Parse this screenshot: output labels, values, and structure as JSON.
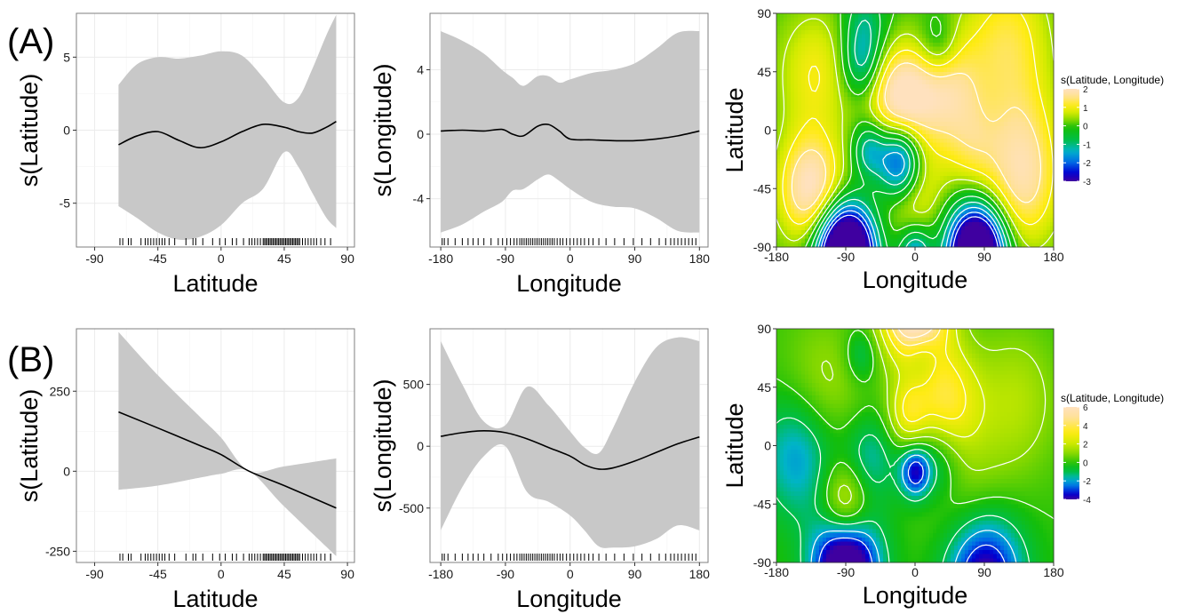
{
  "figure": {
    "row_labels": [
      "(A)",
      "(B)"
    ]
  },
  "chart_data": [
    {
      "id": "A1",
      "row": "A",
      "type": "line",
      "title": "",
      "xlabel": "Latitude",
      "ylabel": "s(Latitude)",
      "xlim": [
        -103,
        95
      ],
      "ylim": [
        -8,
        8
      ],
      "xticks": [
        -90,
        -45,
        0,
        45,
        90
      ],
      "yticks": [
        -5,
        0,
        5
      ],
      "grid": true,
      "series": [
        {
          "x": [
            -73,
            -60,
            -45,
            -30,
            -15,
            0,
            15,
            30,
            45,
            55,
            65,
            75,
            82
          ],
          "y": [
            -1.0,
            -0.4,
            -0.1,
            -0.7,
            -1.2,
            -0.8,
            -0.1,
            0.4,
            0.2,
            -0.1,
            -0.2,
            0.2,
            0.6
          ],
          "upper": [
            3.1,
            4.5,
            5.0,
            4.9,
            5.1,
            5.4,
            5.1,
            3.6,
            1.9,
            2.2,
            4.2,
            6.5,
            7.9
          ],
          "lower": [
            -5.2,
            -6.0,
            -7.0,
            -7.5,
            -7.3,
            -6.5,
            -5.0,
            -4.0,
            -1.5,
            -2.5,
            -4.3,
            -6.0,
            -6.7
          ]
        }
      ],
      "rug": [
        -72,
        -70,
        -66,
        -64,
        -57,
        -54,
        -52,
        -50,
        -48,
        -46,
        -44,
        -42,
        -40,
        -37,
        -33,
        -25,
        -20,
        -18,
        -13,
        -6,
        -1,
        3,
        8,
        11,
        16,
        20,
        22,
        24,
        26,
        28,
        30,
        31,
        32,
        33,
        34,
        35,
        36,
        37,
        38,
        39,
        40,
        41,
        42,
        43,
        44,
        45,
        46,
        47,
        48,
        49,
        50,
        51,
        52,
        53,
        54,
        55,
        56,
        58,
        60,
        62,
        64,
        66,
        68,
        71,
        74,
        78
      ]
    },
    {
      "id": "A2",
      "row": "A",
      "type": "line",
      "title": "",
      "xlabel": "Longitude",
      "ylabel": "s(Longitude)",
      "xlim": [
        -195,
        192
      ],
      "ylim": [
        -7,
        7.5
      ],
      "xticks": [
        -180,
        -90,
        0,
        90,
        180
      ],
      "yticks": [
        -4,
        0,
        4
      ],
      "grid": true,
      "series": [
        {
          "x": [
            -180,
            -150,
            -120,
            -95,
            -80,
            -65,
            -45,
            -30,
            -15,
            0,
            30,
            60,
            90,
            120,
            150,
            180
          ],
          "y": [
            0.2,
            0.25,
            0.2,
            0.3,
            0.0,
            -0.1,
            0.5,
            0.6,
            0.2,
            -0.3,
            -0.35,
            -0.4,
            -0.4,
            -0.3,
            -0.1,
            0.2
          ],
          "upper": [
            6.4,
            5.8,
            5.0,
            4.0,
            3.5,
            3.0,
            3.6,
            3.6,
            3.2,
            3.4,
            3.8,
            4.0,
            4.4,
            5.3,
            6.3,
            6.4
          ],
          "lower": [
            -6.1,
            -5.6,
            -4.8,
            -4.2,
            -3.5,
            -3.4,
            -2.8,
            -2.5,
            -2.9,
            -3.4,
            -4.2,
            -4.5,
            -4.6,
            -5.2,
            -6.0,
            -6.1
          ]
        }
      ],
      "rug": [
        -178,
        -175,
        -170,
        -160,
        -150,
        -142,
        -135,
        -128,
        -120,
        -110,
        -100,
        -94,
        -88,
        -83,
        -78,
        -74,
        -70,
        -67,
        -64,
        -61,
        -58,
        -55,
        -52,
        -49,
        -46,
        -43,
        -40,
        -37,
        -34,
        -31,
        -28,
        -25,
        -22,
        -18,
        -14,
        -10,
        -5,
        0,
        5,
        10,
        15,
        20,
        26,
        32,
        40,
        50,
        62,
        75,
        88,
        100,
        112,
        124,
        133,
        140,
        145,
        150,
        155,
        160,
        165,
        170,
        175
      ]
    },
    {
      "id": "A3",
      "row": "A",
      "type": "heatmap",
      "title": "",
      "xlabel": "Longitude",
      "ylabel": "Latitude",
      "xlim": [
        -180,
        180
      ],
      "ylim": [
        -90,
        90
      ],
      "xticks": [
        -180,
        -90,
        0,
        90,
        180
      ],
      "yticks": [
        -90,
        -45,
        0,
        45,
        90
      ],
      "legend": {
        "title": "s(Latitude, Longitude)",
        "ticks": [
          2,
          1,
          0,
          -1,
          -2,
          -3
        ],
        "range": [
          -3,
          2
        ]
      },
      "bumps": [
        {
          "x": -130,
          "y": 45,
          "a": 1.0,
          "s": 35
        },
        {
          "x": -20,
          "y": 25,
          "a": 2.0,
          "s": 28
        },
        {
          "x": 40,
          "y": 30,
          "a": 1.6,
          "s": 32
        },
        {
          "x": 120,
          "y": 70,
          "a": 1.2,
          "s": 40
        },
        {
          "x": 140,
          "y": 0,
          "a": 0.8,
          "s": 35
        },
        {
          "x": -135,
          "y": -45,
          "a": 2.1,
          "s": 30
        },
        {
          "x": -5,
          "y": -45,
          "a": 1.2,
          "s": 28
        },
        {
          "x": 140,
          "y": -45,
          "a": 1.4,
          "s": 35
        },
        {
          "x": 75,
          "y": -15,
          "a": 0.8,
          "s": 25
        },
        {
          "x": -20,
          "y": -25,
          "a": -3.0,
          "s": 20
        },
        {
          "x": -60,
          "y": -15,
          "a": -1.4,
          "s": 15
        },
        {
          "x": -70,
          "y": 50,
          "a": -1.2,
          "s": 18
        },
        {
          "x": 30,
          "y": 65,
          "a": -0.9,
          "s": 18
        },
        {
          "x": -90,
          "y": -95,
          "a": -6.0,
          "s": 25
        },
        {
          "x": 80,
          "y": -95,
          "a": -5.5,
          "s": 25
        },
        {
          "x": 0,
          "y": -95,
          "a": -1.8,
          "s": 15
        },
        {
          "x": -65,
          "y": 80,
          "a": -1.0,
          "s": 20
        }
      ]
    },
    {
      "id": "B1",
      "row": "B",
      "type": "line",
      "title": "",
      "xlabel": "Latitude",
      "ylabel": "s(Latitude)",
      "xlim": [
        -103,
        95
      ],
      "ylim": [
        -285,
        445
      ],
      "xticks": [
        -90,
        -45,
        0,
        45,
        90
      ],
      "yticks": [
        -250,
        0,
        250
      ],
      "grid": true,
      "series": [
        {
          "x": [
            -73,
            -45,
            -15,
            0,
            20,
            45,
            82
          ],
          "y": [
            185,
            135,
            80,
            52,
            0,
            -45,
            -115
          ],
          "upper": [
            435,
            300,
            170,
            105,
            0,
            15,
            40
          ],
          "lower": [
            -58,
            -45,
            -20,
            -8,
            0,
            -110,
            -265
          ]
        }
      ],
      "rug": [
        -72,
        -70,
        -66,
        -64,
        -57,
        -54,
        -52,
        -50,
        -48,
        -46,
        -44,
        -42,
        -40,
        -37,
        -33,
        -25,
        -20,
        -18,
        -13,
        -6,
        -1,
        3,
        8,
        11,
        16,
        20,
        22,
        24,
        26,
        28,
        30,
        31,
        32,
        33,
        34,
        35,
        36,
        37,
        38,
        39,
        40,
        41,
        42,
        43,
        44,
        45,
        46,
        47,
        48,
        49,
        50,
        51,
        52,
        53,
        54,
        55,
        56,
        58,
        60,
        62,
        64,
        66,
        68,
        71,
        74,
        78
      ]
    },
    {
      "id": "B2",
      "row": "B",
      "type": "line",
      "title": "",
      "xlabel": "Longitude",
      "ylabel": "s(Longitude)",
      "xlim": [
        -195,
        192
      ],
      "ylim": [
        -940,
        950
      ],
      "xticks": [
        -180,
        -90,
        0,
        90,
        180
      ],
      "yticks": [
        -500,
        0,
        500
      ],
      "grid": true,
      "series": [
        {
          "x": [
            -180,
            -150,
            -120,
            -90,
            -60,
            -30,
            0,
            20,
            40,
            60,
            90,
            120,
            150,
            180
          ],
          "y": [
            80,
            110,
            125,
            110,
            60,
            -10,
            -80,
            -150,
            -185,
            -175,
            -120,
            -50,
            20,
            75
          ],
          "upper": [
            850,
            500,
            200,
            170,
            480,
            330,
            120,
            -10,
            -55,
            150,
            520,
            800,
            880,
            850
          ],
          "lower": [
            -680,
            -330,
            -80,
            0,
            -370,
            -450,
            -560,
            -680,
            -810,
            -820,
            -810,
            -750,
            -640,
            -680
          ]
        }
      ],
      "rug": [
        -178,
        -175,
        -170,
        -160,
        -150,
        -142,
        -135,
        -128,
        -120,
        -110,
        -100,
        -94,
        -88,
        -83,
        -78,
        -74,
        -70,
        -67,
        -64,
        -61,
        -58,
        -55,
        -52,
        -49,
        -46,
        -43,
        -40,
        -37,
        -34,
        -31,
        -28,
        -25,
        -22,
        -18,
        -14,
        -10,
        -5,
        0,
        5,
        10,
        15,
        20,
        26,
        32,
        40,
        50,
        62,
        75,
        88,
        100,
        112,
        124,
        133,
        140,
        145,
        150,
        155,
        160,
        165,
        170,
        175
      ]
    },
    {
      "id": "B3",
      "row": "B",
      "type": "heatmap",
      "title": "",
      "xlabel": "Longitude",
      "ylabel": "Latitude",
      "xlim": [
        -180,
        180
      ],
      "ylim": [
        -90,
        90
      ],
      "xticks": [
        -180,
        -90,
        0,
        90,
        180
      ],
      "yticks": [
        -90,
        -45,
        0,
        45,
        90
      ],
      "legend": {
        "title": "s(Latitude, Longitude)",
        "ticks": [
          6,
          4,
          2,
          0,
          -2,
          -4
        ],
        "range": [
          -4,
          6
        ]
      },
      "bumps": [
        {
          "x": 0,
          "y": 110,
          "a": 8.0,
          "s": 30
        },
        {
          "x": 40,
          "y": 35,
          "a": 3.5,
          "s": 30
        },
        {
          "x": -10,
          "y": 25,
          "a": 2.5,
          "s": 18
        },
        {
          "x": -120,
          "y": 40,
          "a": 1.5,
          "s": 40
        },
        {
          "x": 130,
          "y": 35,
          "a": 1.6,
          "s": 40
        },
        {
          "x": -90,
          "y": -45,
          "a": 3.0,
          "s": 22
        },
        {
          "x": 70,
          "y": -40,
          "a": 1.0,
          "s": 40
        },
        {
          "x": -150,
          "y": -5,
          "a": -2.5,
          "s": 35
        },
        {
          "x": -60,
          "y": -10,
          "a": -1.8,
          "s": 25
        },
        {
          "x": 0,
          "y": -20,
          "a": -3.5,
          "s": 14
        },
        {
          "x": 30,
          "y": -10,
          "a": -1.8,
          "s": 22
        },
        {
          "x": -90,
          "y": -95,
          "a": -6.0,
          "s": 30
        },
        {
          "x": 90,
          "y": -100,
          "a": -4.5,
          "s": 35
        },
        {
          "x": -70,
          "y": 70,
          "a": -1.5,
          "s": 15
        },
        {
          "x": 10,
          "y": 70,
          "a": -1.5,
          "s": 15
        }
      ]
    }
  ]
}
